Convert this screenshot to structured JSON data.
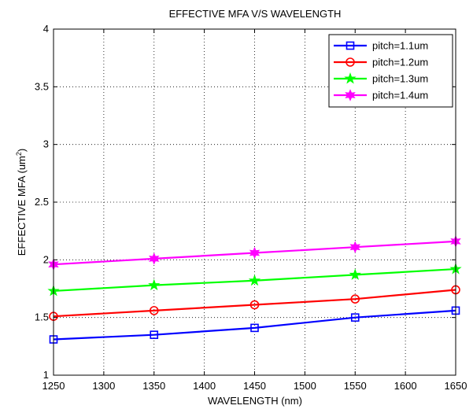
{
  "chart_data": {
    "type": "line",
    "title": "EFFECTIVE MFA V/S WAVELENGTH",
    "xlabel": "WAVELENGTH (nm)",
    "ylabel": "EFFECTIVE MFA (um²)",
    "xlim": [
      1250,
      1650
    ],
    "ylim": [
      1,
      4
    ],
    "xticks": [
      1250,
      1300,
      1350,
      1400,
      1450,
      1500,
      1550,
      1600,
      1650
    ],
    "yticks": [
      1,
      1.5,
      2,
      2.5,
      3,
      3.5,
      4
    ],
    "ytick_labels": [
      "1",
      "1.5",
      "2",
      "2.5",
      "3",
      "3.5",
      "4"
    ],
    "grid": true,
    "legend_position": "top-right",
    "x": [
      1250,
      1350,
      1450,
      1550,
      1650
    ],
    "series": [
      {
        "name": "pitch=1.1um",
        "color": "#0000ff",
        "marker": "square",
        "values": [
          1.31,
          1.35,
          1.41,
          1.5,
          1.56
        ]
      },
      {
        "name": "pitch=1.2um",
        "color": "#ff0000",
        "marker": "circle",
        "values": [
          1.51,
          1.56,
          1.61,
          1.66,
          1.74
        ]
      },
      {
        "name": "pitch=1.3um",
        "color": "#00ff00",
        "marker": "star",
        "values": [
          1.73,
          1.78,
          1.82,
          1.87,
          1.92
        ]
      },
      {
        "name": "pitch=1.4um",
        "color": "#ff00ff",
        "marker": "hexstar",
        "values": [
          1.96,
          2.01,
          2.06,
          2.11,
          2.16
        ]
      }
    ]
  }
}
